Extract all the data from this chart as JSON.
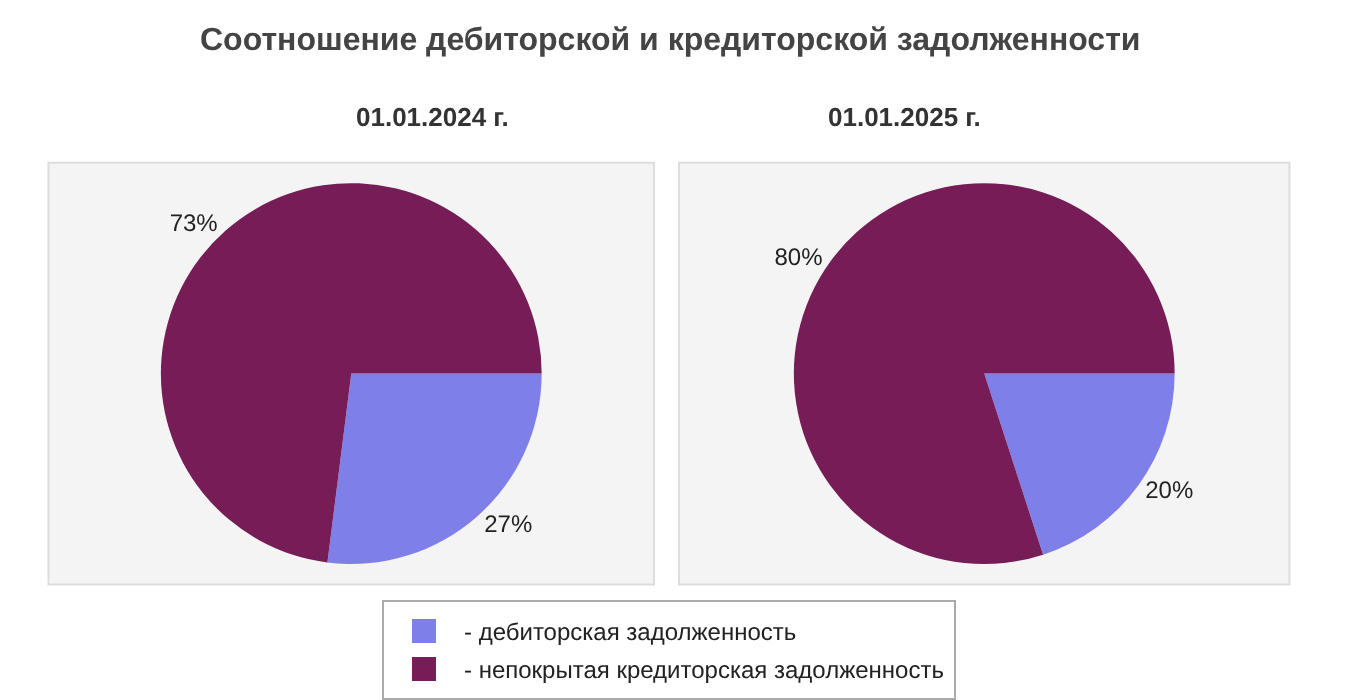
{
  "chart_data": {
    "type": "pie",
    "title": "Соотношение дебиторской и кредиторской задолженности",
    "categories": [
      "- дебиторская задолженность",
      "- непокрытая кредиторская задолженность"
    ],
    "colors": [
      "#7f7fea",
      "#761c56"
    ],
    "legend": "bottom",
    "series": [
      {
        "name": "01.01.2024 г.",
        "values": [
          27,
          73
        ],
        "value_labels": [
          "27%",
          "73%"
        ]
      },
      {
        "name": "01.01.2025 г.",
        "values": [
          20,
          80
        ],
        "value_labels": [
          "20%",
          "80%"
        ]
      }
    ]
  }
}
